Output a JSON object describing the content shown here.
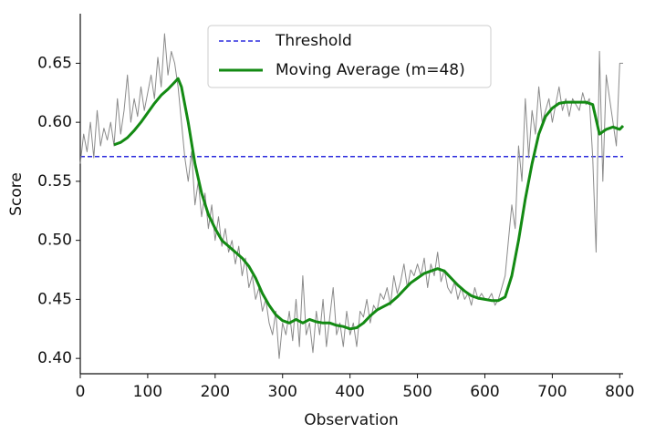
{
  "chart_data": {
    "type": "line",
    "xlabel": "Observation",
    "ylabel": "Score",
    "xlim": [
      0,
      805
    ],
    "ylim": [
      0.387,
      0.692
    ],
    "xticks": [
      0,
      100,
      200,
      300,
      400,
      500,
      600,
      700,
      800
    ],
    "yticks": [
      {
        "value": 0.4,
        "label": "0.40"
      },
      0.45,
      {
        "value": 0.5,
        "label": "0.50"
      },
      0.55,
      {
        "value": 0.6,
        "label": "0.60"
      },
      0.65
    ],
    "legend": "upper center",
    "threshold": {
      "name": "Threshold",
      "value": 0.571,
      "color": "#2b2bdd"
    },
    "series": [
      {
        "color": "#8a8a8a",
        "x": [
          0,
          5,
          10,
          15,
          20,
          25,
          30,
          35,
          40,
          45,
          50,
          55,
          60,
          65,
          70,
          75,
          80,
          85,
          90,
          95,
          100,
          105,
          110,
          115,
          120,
          125,
          130,
          135,
          140,
          145,
          150,
          155,
          160,
          165,
          170,
          175,
          180,
          185,
          190,
          195,
          200,
          205,
          210,
          215,
          220,
          225,
          230,
          235,
          240,
          245,
          250,
          255,
          260,
          265,
          270,
          275,
          280,
          285,
          290,
          295,
          300,
          305,
          310,
          315,
          320,
          325,
          330,
          335,
          340,
          345,
          350,
          355,
          360,
          365,
          370,
          375,
          380,
          385,
          390,
          395,
          400,
          405,
          410,
          415,
          420,
          425,
          430,
          435,
          440,
          445,
          450,
          455,
          460,
          465,
          470,
          475,
          480,
          485,
          490,
          495,
          500,
          505,
          510,
          515,
          520,
          525,
          530,
          535,
          540,
          545,
          550,
          555,
          560,
          565,
          570,
          575,
          580,
          585,
          590,
          595,
          600,
          605,
          610,
          615,
          620,
          625,
          630,
          635,
          640,
          645,
          650,
          655,
          660,
          665,
          670,
          675,
          680,
          685,
          690,
          695,
          700,
          705,
          710,
          715,
          720,
          725,
          730,
          735,
          740,
          745,
          750,
          755,
          760,
          765,
          770,
          775,
          780,
          785,
          790,
          795,
          800,
          805
        ],
        "values": [
          0.565,
          0.59,
          0.575,
          0.6,
          0.57,
          0.61,
          0.58,
          0.595,
          0.585,
          0.6,
          0.58,
          0.62,
          0.59,
          0.61,
          0.64,
          0.6,
          0.62,
          0.605,
          0.63,
          0.61,
          0.625,
          0.64,
          0.62,
          0.655,
          0.63,
          0.675,
          0.64,
          0.66,
          0.65,
          0.63,
          0.6,
          0.57,
          0.55,
          0.575,
          0.53,
          0.55,
          0.52,
          0.54,
          0.51,
          0.53,
          0.5,
          0.52,
          0.495,
          0.51,
          0.49,
          0.5,
          0.48,
          0.495,
          0.47,
          0.485,
          0.46,
          0.47,
          0.45,
          0.46,
          0.44,
          0.45,
          0.43,
          0.42,
          0.44,
          0.4,
          0.43,
          0.42,
          0.44,
          0.415,
          0.45,
          0.41,
          0.47,
          0.42,
          0.43,
          0.405,
          0.44,
          0.42,
          0.45,
          0.41,
          0.435,
          0.46,
          0.42,
          0.43,
          0.41,
          0.44,
          0.42,
          0.43,
          0.41,
          0.44,
          0.435,
          0.45,
          0.43,
          0.445,
          0.44,
          0.455,
          0.45,
          0.46,
          0.445,
          0.47,
          0.455,
          0.465,
          0.48,
          0.46,
          0.475,
          0.47,
          0.48,
          0.47,
          0.485,
          0.46,
          0.48,
          0.47,
          0.49,
          0.465,
          0.475,
          0.46,
          0.455,
          0.465,
          0.45,
          0.46,
          0.45,
          0.455,
          0.445,
          0.46,
          0.45,
          0.455,
          0.45,
          0.45,
          0.455,
          0.445,
          0.45,
          0.46,
          0.47,
          0.5,
          0.53,
          0.51,
          0.58,
          0.55,
          0.62,
          0.57,
          0.61,
          0.59,
          0.63,
          0.6,
          0.61,
          0.62,
          0.6,
          0.615,
          0.63,
          0.61,
          0.62,
          0.605,
          0.62,
          0.615,
          0.61,
          0.625,
          0.615,
          0.62,
          0.57,
          0.49,
          0.66,
          0.55,
          0.64,
          0.62,
          0.6,
          0.58,
          0.65,
          0.65
        ]
      },
      {
        "name": "Moving Average (m=48)",
        "color": "#138a13",
        "x": [
          50,
          60,
          70,
          80,
          90,
          100,
          110,
          120,
          130,
          140,
          145,
          150,
          160,
          170,
          180,
          190,
          200,
          210,
          220,
          230,
          240,
          250,
          260,
          270,
          280,
          290,
          300,
          310,
          320,
          330,
          340,
          350,
          360,
          370,
          380,
          390,
          400,
          410,
          420,
          430,
          440,
          450,
          460,
          470,
          480,
          490,
          500,
          510,
          520,
          530,
          540,
          550,
          560,
          570,
          580,
          590,
          600,
          610,
          620,
          630,
          640,
          650,
          660,
          670,
          680,
          690,
          700,
          710,
          720,
          730,
          740,
          750,
          760,
          770,
          780,
          790,
          800,
          805
        ],
        "values": [
          0.581,
          0.583,
          0.587,
          0.593,
          0.6,
          0.608,
          0.616,
          0.623,
          0.628,
          0.634,
          0.637,
          0.63,
          0.6,
          0.565,
          0.54,
          0.522,
          0.51,
          0.5,
          0.495,
          0.49,
          0.485,
          0.478,
          0.468,
          0.455,
          0.445,
          0.437,
          0.432,
          0.43,
          0.433,
          0.43,
          0.433,
          0.431,
          0.43,
          0.43,
          0.428,
          0.427,
          0.425,
          0.426,
          0.43,
          0.436,
          0.441,
          0.444,
          0.447,
          0.452,
          0.458,
          0.464,
          0.468,
          0.472,
          0.474,
          0.476,
          0.474,
          0.468,
          0.462,
          0.457,
          0.453,
          0.451,
          0.45,
          0.449,
          0.449,
          0.452,
          0.47,
          0.5,
          0.535,
          0.565,
          0.59,
          0.605,
          0.612,
          0.616,
          0.617,
          0.617,
          0.617,
          0.617,
          0.615,
          0.59,
          0.594,
          0.596,
          0.594,
          0.597
        ]
      }
    ]
  }
}
